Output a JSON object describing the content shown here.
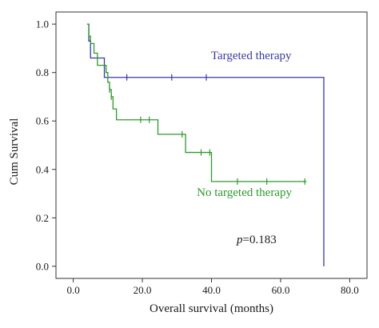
{
  "chart_data": {
    "type": "line",
    "subtype": "kaplan-meier",
    "xlabel": "Overall survival (months)",
    "ylabel": "Cum Survival",
    "xlim": [
      -5,
      85
    ],
    "ylim": [
      -0.05,
      1.05
    ],
    "x_ticks": [
      0,
      20,
      40,
      60,
      80
    ],
    "x_tick_labels": [
      "0.0",
      "20.0",
      "40.0",
      "60.0",
      "80.0"
    ],
    "y_ticks": [
      0,
      0.2,
      0.4,
      0.6,
      0.8,
      1.0
    ],
    "y_tick_labels": [
      "0.0",
      "0.2",
      "0.4",
      "0.6",
      "0.8",
      "1.0"
    ],
    "grid": false,
    "annotation": {
      "p_label": "p",
      "p_value": "=0.183"
    },
    "series": [
      {
        "name": "Targeted therapy",
        "color": "#3a3aa0",
        "steps": [
          [
            4,
            1.0
          ],
          [
            4.5,
            0.93
          ],
          [
            5,
            0.86
          ],
          [
            8,
            0.86
          ],
          [
            9,
            0.78
          ],
          [
            72.5,
            0.78
          ],
          [
            72.5,
            0.0
          ]
        ],
        "censors": [
          [
            15.5,
            0.78
          ],
          [
            28.5,
            0.78
          ],
          [
            38.5,
            0.78
          ]
        ],
        "label_pos": [
          51.5,
          0.855
        ]
      },
      {
        "name": "No targeted therapy",
        "color": "#2e9a2e",
        "steps": [
          [
            4,
            1.0
          ],
          [
            4.5,
            0.95
          ],
          [
            5,
            0.92
          ],
          [
            6,
            0.88
          ],
          [
            7,
            0.83
          ],
          [
            9.5,
            0.8
          ],
          [
            10,
            0.76
          ],
          [
            10.5,
            0.73
          ],
          [
            11,
            0.7
          ],
          [
            11.5,
            0.65
          ],
          [
            12.5,
            0.605
          ],
          [
            24.5,
            0.605
          ],
          [
            24.5,
            0.545
          ],
          [
            32.5,
            0.545
          ],
          [
            32.5,
            0.47
          ],
          [
            40,
            0.47
          ],
          [
            40,
            0.35
          ],
          [
            67.5,
            0.35
          ]
        ],
        "censors": [
          [
            10.5,
            0.73
          ],
          [
            11,
            0.7
          ],
          [
            19.5,
            0.605
          ],
          [
            22,
            0.605
          ],
          [
            31.5,
            0.545
          ],
          [
            37,
            0.47
          ],
          [
            39.5,
            0.47
          ],
          [
            47.5,
            0.35
          ],
          [
            56,
            0.35
          ],
          [
            67,
            0.35
          ]
        ],
        "label_pos": [
          49.5,
          0.29
        ]
      }
    ]
  }
}
